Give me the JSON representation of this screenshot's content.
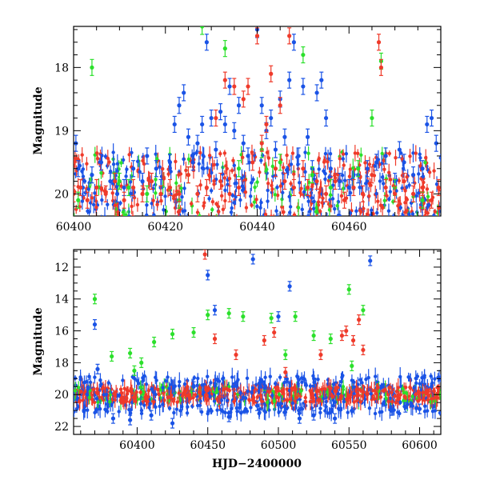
{
  "chart_data": [
    {
      "type": "scatter",
      "title": "",
      "xlabel": "",
      "ylabel": "Magnitude",
      "xlim": [
        60400,
        60480
      ],
      "ylim": [
        20.35,
        17.35
      ],
      "y_inverted": true,
      "x_ticks": [
        60400,
        60420,
        60440,
        60460
      ],
      "y_ticks": [
        18,
        19,
        20
      ],
      "grid": false,
      "series": [
        {
          "color": "#1a53e6",
          "points": [
            [
              60400.5,
              19.2
            ],
            [
              60401,
              19.6
            ],
            [
              60402,
              19.9
            ],
            [
              60404,
              19.7
            ],
            [
              60406,
              19.5
            ],
            [
              60408,
              19.8
            ],
            [
              60409.5,
              20.0
            ],
            [
              60411,
              19.9
            ],
            [
              60413,
              19.6
            ],
            [
              60415,
              19.8
            ],
            [
              60416,
              19.4
            ],
            [
              60418,
              19.6
            ],
            [
              60419,
              19.9
            ],
            [
              60421,
              19.5
            ],
            [
              60422,
              18.9
            ],
            [
              60423,
              18.6
            ],
            [
              60424,
              18.4
            ],
            [
              60425,
              19.1
            ],
            [
              60426,
              19.5
            ],
            [
              60427,
              19.2
            ],
            [
              60428,
              18.9
            ],
            [
              60429,
              17.6
            ],
            [
              60430,
              18.8
            ],
            [
              60431,
              19.3
            ],
            [
              60432,
              18.7
            ],
            [
              60433,
              18.9
            ],
            [
              60434,
              18.3
            ],
            [
              60435,
              19.0
            ],
            [
              60436,
              18.6
            ],
            [
              60437,
              19.2
            ],
            [
              60438,
              19.4
            ],
            [
              60440,
              17.4
            ],
            [
              60441,
              18.6
            ],
            [
              60442,
              19.0
            ],
            [
              60443,
              18.8
            ],
            [
              60444,
              19.3
            ],
            [
              60445,
              18.5
            ],
            [
              60446,
              19.1
            ],
            [
              60447,
              18.2
            ],
            [
              60448,
              17.6
            ],
            [
              60449,
              19.4
            ],
            [
              60450,
              18.3
            ],
            [
              60451,
              19.1
            ],
            [
              60452,
              19.6
            ],
            [
              60453,
              18.4
            ],
            [
              60454,
              18.2
            ],
            [
              60455,
              18.8
            ],
            [
              60456,
              19.6
            ],
            [
              60458,
              19.8
            ],
            [
              60460,
              19.9
            ],
            [
              60462,
              19.7
            ],
            [
              60464,
              19.6
            ],
            [
              60466,
              19.5
            ],
            [
              60468,
              19.4
            ],
            [
              60470,
              19.8
            ],
            [
              60471,
              19.3
            ],
            [
              60472,
              19.5
            ],
            [
              60474,
              19.7
            ],
            [
              60476,
              19.6
            ],
            [
              60477,
              18.9
            ],
            [
              60478,
              18.8
            ],
            [
              60479,
              19.2
            ]
          ]
        },
        {
          "color": "#2be02b",
          "points": [
            [
              60401,
              20.1
            ],
            [
              60404,
              18.0
            ],
            [
              60410,
              19.8
            ],
            [
              60412,
              19.9
            ],
            [
              60416,
              20.0
            ],
            [
              60423,
              20.1
            ],
            [
              60425,
              19.7
            ],
            [
              60428,
              17.35
            ],
            [
              60433,
              17.7
            ],
            [
              60436,
              19.6
            ],
            [
              60441,
              19.3
            ],
            [
              60445,
              19.5
            ],
            [
              60450,
              17.8
            ],
            [
              60452,
              19.7
            ],
            [
              60456,
              19.9
            ],
            [
              60462,
              19.6
            ],
            [
              60465,
              18.8
            ],
            [
              60467,
              17.9
            ],
            [
              60470,
              19.9
            ],
            [
              60476,
              20.1
            ]
          ]
        },
        {
          "color": "#ef3a2a",
          "points": [
            [
              60400,
              20.0
            ],
            [
              60401.5,
              19.9
            ],
            [
              60403,
              20.1
            ],
            [
              60405,
              19.9
            ],
            [
              60407,
              20.0
            ],
            [
              60409,
              19.8
            ],
            [
              60411,
              20.1
            ],
            [
              60413,
              19.9
            ],
            [
              60415,
              20.0
            ],
            [
              60417,
              19.8
            ],
            [
              60419,
              20.0
            ],
            [
              60421,
              19.9
            ],
            [
              60423,
              20.0
            ],
            [
              60425,
              19.7
            ],
            [
              60427,
              20.0
            ],
            [
              60429,
              19.9
            ],
            [
              60431,
              18.8
            ],
            [
              60432,
              19.8
            ],
            [
              60433,
              18.2
            ],
            [
              60434,
              20.0
            ],
            [
              60435,
              18.3
            ],
            [
              60436,
              19.9
            ],
            [
              60437,
              18.5
            ],
            [
              60438,
              18.3
            ],
            [
              60439,
              19.5
            ],
            [
              60440,
              17.5
            ],
            [
              60441,
              19.2
            ],
            [
              60442,
              18.9
            ],
            [
              60443,
              18.1
            ],
            [
              60444,
              19.6
            ],
            [
              60445,
              18.6
            ],
            [
              60446,
              19.8
            ],
            [
              60447,
              17.5
            ],
            [
              60448,
              19.9
            ],
            [
              60450,
              19.6
            ],
            [
              60451,
              19.9
            ],
            [
              60453,
              19.8
            ],
            [
              60455,
              20.0
            ],
            [
              60457,
              19.8
            ],
            [
              60459,
              20.1
            ],
            [
              60461,
              19.9
            ],
            [
              60463,
              20.0
            ],
            [
              60465,
              19.7
            ],
            [
              60466.5,
              17.6
            ],
            [
              60467,
              18.0
            ],
            [
              60468,
              19.9
            ],
            [
              60470,
              20.0
            ],
            [
              60472,
              19.8
            ],
            [
              60474,
              20.0
            ],
            [
              60476,
              19.9
            ],
            [
              60478,
              20.1
            ],
            [
              60479.5,
              19.9
            ]
          ]
        }
      ]
    },
    {
      "type": "scatter",
      "title": "",
      "xlabel": "HJD−2400000",
      "ylabel": "Magnitude",
      "xlim": [
        60355,
        60615
      ],
      "ylim": [
        22.5,
        10.9
      ],
      "y_inverted": true,
      "x_ticks": [
        60400,
        60450,
        60500,
        60550,
        60600
      ],
      "y_ticks": [
        12,
        14,
        16,
        18,
        20,
        22
      ],
      "grid": false,
      "series": [
        {
          "color": "#1a53e6",
          "points": [
            [
              60370,
              15.6
            ],
            [
              60372,
              18.4
            ],
            [
              60383,
              21.5
            ],
            [
              60395,
              21.6
            ],
            [
              60410,
              21.3
            ],
            [
              60425,
              21.8
            ],
            [
              60440,
              19.5
            ],
            [
              60450,
              12.5
            ],
            [
              60455,
              14.7
            ],
            [
              60465,
              21.4
            ],
            [
              60482,
              11.5
            ],
            [
              60485,
              20.7
            ],
            [
              60500,
              15.1
            ],
            [
              60508,
              13.2
            ],
            [
              60515,
              21.5
            ],
            [
              60525,
              21.3
            ],
            [
              60540,
              21.5
            ],
            [
              60565,
              11.6
            ],
            [
              60580,
              21.0
            ],
            [
              60590,
              20.8
            ],
            [
              60600,
              20.9
            ]
          ]
        },
        {
          "color": "#2be02b",
          "points": [
            [
              60370,
              14.0
            ],
            [
              60382,
              17.6
            ],
            [
              60395,
              17.4
            ],
            [
              60398,
              18.5
            ],
            [
              60403,
              18.0
            ],
            [
              60412,
              16.7
            ],
            [
              60425,
              16.2
            ],
            [
              60440,
              16.1
            ],
            [
              60450,
              15.0
            ],
            [
              60465,
              14.9
            ],
            [
              60475,
              15.1
            ],
            [
              60495,
              15.2
            ],
            [
              60505,
              17.5
            ],
            [
              60512,
              15.1
            ],
            [
              60525,
              16.3
            ],
            [
              60537,
              16.5
            ],
            [
              60550,
              13.4
            ],
            [
              60552,
              18.2
            ],
            [
              60560,
              14.7
            ]
          ]
        },
        {
          "color": "#ef3a2a",
          "points": [
            [
              60448,
              11.2
            ],
            [
              60455,
              16.5
            ],
            [
              60470,
              17.5
            ],
            [
              60490,
              16.6
            ],
            [
              60497,
              16.1
            ],
            [
              60505,
              18.6
            ],
            [
              60530,
              17.5
            ],
            [
              60545,
              16.3
            ],
            [
              60548,
              16.0
            ],
            [
              60553,
              16.6
            ],
            [
              60557,
              15.3
            ],
            [
              60560,
              17.2
            ]
          ]
        }
      ]
    }
  ]
}
